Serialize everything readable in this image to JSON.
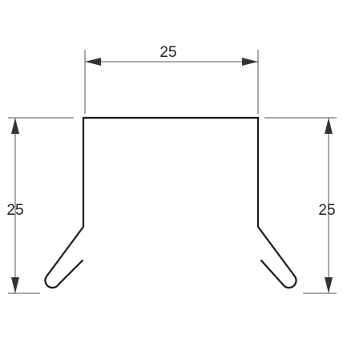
{
  "dimensions": {
    "top_width": "25",
    "left_height": "25",
    "right_height": "25"
  },
  "colors": {
    "profile_line": "#1a1a1a",
    "dimension_line": "#555555",
    "background": "#ffffff"
  }
}
